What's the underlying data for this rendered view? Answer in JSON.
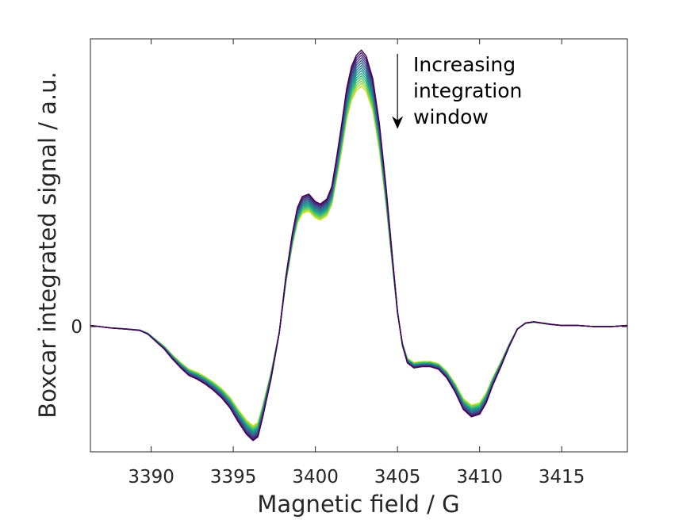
{
  "chart_data": {
    "type": "line",
    "xlabel": "Magnetic field / G",
    "ylabel": "Boxcar integrated signal / a.u.",
    "xlim": [
      3386.3,
      3419.0
    ],
    "ylim": [
      -1.0,
      2.3
    ],
    "x_ticks": [
      3390,
      3395,
      3400,
      3405,
      3410,
      3415
    ],
    "x_tick_labels": [
      "3390",
      "3395",
      "3400",
      "3405",
      "3410",
      "3415"
    ],
    "y_ticks": [
      0
    ],
    "y_tick_labels": [
      "0"
    ],
    "grid": false,
    "annotation": {
      "lines": [
        "Increasing",
        "integration",
        "window"
      ],
      "arrow_x": 3405.0,
      "arrow_y_from": 2.18,
      "arrow_y_to": 1.58
    },
    "colormap": "viridis",
    "series_count": 15,
    "series_colors": [
      "#440154",
      "#481a6c",
      "#472f7d",
      "#414487",
      "#39568c",
      "#31688e",
      "#2a788e",
      "#23888e",
      "#1f988b",
      "#22a884",
      "#35b779",
      "#54c568",
      "#7ad151",
      "#a5db36",
      "#d2e21b"
    ],
    "series_scale": {
      "top": 1.0,
      "bottom": 0.87
    },
    "x": [
      3386.3,
      3387.5,
      3388.5,
      3389.3,
      3389.8,
      3390.3,
      3390.8,
      3391.3,
      3391.8,
      3392.3,
      3392.8,
      3393.3,
      3393.8,
      3394.3,
      3394.8,
      3395.3,
      3395.8,
      3396.2,
      3396.5,
      3396.8,
      3397.3,
      3397.8,
      3398.2,
      3398.6,
      3398.9,
      3399.2,
      3399.6,
      3400.0,
      3400.3,
      3400.7,
      3401.0,
      3401.3,
      3401.6,
      3401.9,
      3402.2,
      3402.5,
      3402.8,
      3403.1,
      3403.5,
      3403.9,
      3404.3,
      3404.7,
      3405.0,
      3405.3,
      3405.6,
      3406.0,
      3406.5,
      3407.0,
      3407.5,
      3408.0,
      3408.5,
      3409.0,
      3409.5,
      3410.0,
      3410.4,
      3410.8,
      3411.3,
      3411.8,
      3412.3,
      3412.8,
      3413.3,
      3413.8,
      3414.3,
      3415.0,
      3416.0,
      3417.0,
      3418.0,
      3419.0
    ],
    "y": [
      0.01,
      -0.01,
      -0.02,
      -0.03,
      -0.06,
      -0.12,
      -0.18,
      -0.26,
      -0.33,
      -0.39,
      -0.42,
      -0.46,
      -0.51,
      -0.57,
      -0.65,
      -0.76,
      -0.86,
      -0.91,
      -0.88,
      -0.72,
      -0.42,
      -0.05,
      0.4,
      0.75,
      0.95,
      1.04,
      1.06,
      1.0,
      0.98,
      1.02,
      1.12,
      1.36,
      1.62,
      1.9,
      2.08,
      2.17,
      2.21,
      2.16,
      1.98,
      1.62,
      1.12,
      0.55,
      0.12,
      -0.15,
      -0.29,
      -0.33,
      -0.32,
      -0.32,
      -0.34,
      -0.41,
      -0.52,
      -0.66,
      -0.72,
      -0.7,
      -0.61,
      -0.47,
      -0.32,
      -0.16,
      -0.02,
      0.03,
      0.04,
      0.03,
      0.02,
      0.01,
      0.01,
      0.0,
      0.0,
      0.01
    ]
  }
}
